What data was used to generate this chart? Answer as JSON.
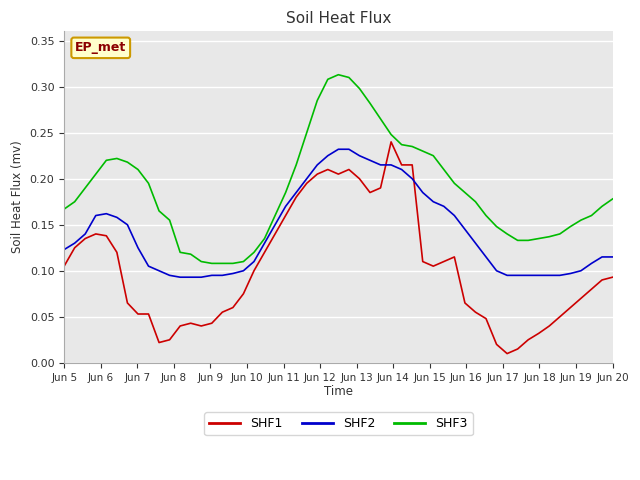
{
  "title": "Soil Heat Flux",
  "ylabel": "Soil Heat Flux (mv)",
  "xlabel": "Time",
  "ylim": [
    0.0,
    0.36
  ],
  "yticks": [
    0.0,
    0.05,
    0.1,
    0.15,
    0.2,
    0.25,
    0.3,
    0.35
  ],
  "xtick_labels": [
    "Jun 5",
    "Jun 6",
    "Jun 7",
    "Jun 8",
    "Jun 9",
    "Jun 10",
    "Jun 11",
    "Jun 12",
    "Jun 13",
    "Jun 14",
    "Jun 15",
    "Jun 16",
    "Jun 17",
    "Jun 18",
    "Jun 19",
    "Jun 20"
  ],
  "annotation_text": "EP_met",
  "colors": {
    "SHF1": "#cc0000",
    "SHF2": "#0000cc",
    "SHF3": "#00bb00"
  },
  "fig_bg": "#ffffff",
  "plot_bg": "#e8e8e8",
  "SHF1": [
    0.105,
    0.125,
    0.135,
    0.14,
    0.138,
    0.12,
    0.065,
    0.053,
    0.053,
    0.022,
    0.025,
    0.04,
    0.043,
    0.04,
    0.043,
    0.055,
    0.06,
    0.075,
    0.1,
    0.12,
    0.14,
    0.16,
    0.18,
    0.195,
    0.205,
    0.21,
    0.205,
    0.21,
    0.2,
    0.185,
    0.19,
    0.24,
    0.215,
    0.215,
    0.11,
    0.105,
    0.11,
    0.115,
    0.065,
    0.055,
    0.048,
    0.02,
    0.01,
    0.015,
    0.025,
    0.032,
    0.04,
    0.05,
    0.06,
    0.07,
    0.08,
    0.09,
    0.093
  ],
  "SHF2": [
    0.123,
    0.13,
    0.14,
    0.16,
    0.162,
    0.158,
    0.15,
    0.125,
    0.105,
    0.1,
    0.095,
    0.093,
    0.093,
    0.093,
    0.095,
    0.095,
    0.097,
    0.1,
    0.11,
    0.13,
    0.15,
    0.17,
    0.185,
    0.2,
    0.215,
    0.225,
    0.232,
    0.232,
    0.225,
    0.22,
    0.215,
    0.215,
    0.21,
    0.2,
    0.185,
    0.175,
    0.17,
    0.16,
    0.145,
    0.13,
    0.115,
    0.1,
    0.095,
    0.095,
    0.095,
    0.095,
    0.095,
    0.095,
    0.097,
    0.1,
    0.108,
    0.115,
    0.115
  ],
  "SHF3": [
    0.167,
    0.175,
    0.19,
    0.205,
    0.22,
    0.222,
    0.218,
    0.21,
    0.195,
    0.165,
    0.155,
    0.12,
    0.118,
    0.11,
    0.108,
    0.108,
    0.108,
    0.11,
    0.12,
    0.135,
    0.16,
    0.185,
    0.215,
    0.25,
    0.285,
    0.308,
    0.313,
    0.31,
    0.298,
    0.282,
    0.265,
    0.248,
    0.237,
    0.235,
    0.23,
    0.225,
    0.21,
    0.195,
    0.185,
    0.175,
    0.16,
    0.148,
    0.14,
    0.133,
    0.133,
    0.135,
    0.137,
    0.14,
    0.148,
    0.155,
    0.16,
    0.17,
    0.178
  ]
}
